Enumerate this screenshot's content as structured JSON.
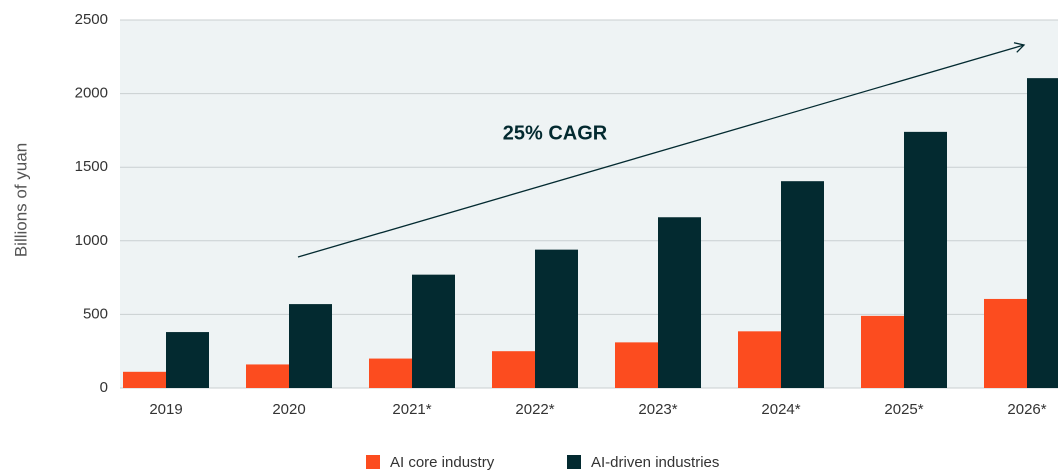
{
  "chart_data": {
    "type": "bar",
    "y_label": "Billions of yuan",
    "annotation": "25% CAGR",
    "categories": [
      "2019",
      "2020",
      "2021*",
      "2022*",
      "2023*",
      "2024*",
      "2025*",
      "2026*"
    ],
    "series": [
      {
        "name": "AI core industry",
        "color": "#fc4c1f",
        "values": [
          110,
          160,
          200,
          250,
          310,
          385,
          490,
          605
        ]
      },
      {
        "name": "AI-driven industries",
        "color": "#032a30",
        "values": [
          380,
          570,
          770,
          940,
          1160,
          1405,
          1740,
          2105
        ]
      }
    ],
    "ylim": [
      0,
      2500
    ],
    "yticks": [
      0,
      500,
      1000,
      1500,
      2000,
      2500
    ],
    "grid": true
  }
}
